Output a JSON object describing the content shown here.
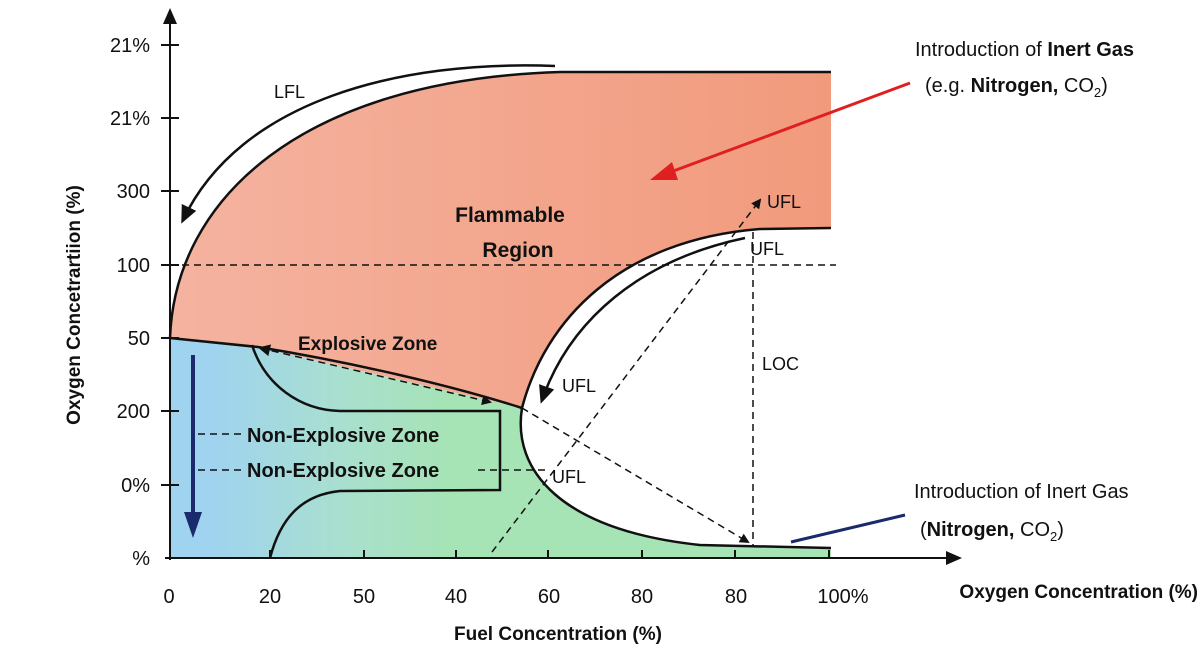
{
  "y_axis": {
    "title": "Oxygen Concetrartiion (%)",
    "ticks": [
      "21%",
      "21%",
      "300",
      "100",
      "50",
      "200",
      "0%",
      "%"
    ]
  },
  "x_axis": {
    "title": "Fuel Concentration (%)",
    "secondary_title": "Oxygen Concentration (%)",
    "ticks": [
      "0",
      "20",
      "50",
      "40",
      "60",
      "80",
      "80",
      "100%"
    ]
  },
  "labels": {
    "lfl": "LFL",
    "flammable_1": "Flammable",
    "flammable_2": "Region",
    "explosive": "Explosive Zone",
    "non_explosive_1": "Non-Explosive Zone",
    "non_explosive_2": "Non-Explosive Zone",
    "ufl_top": "UFL",
    "ufl_upper": "UFL",
    "ufl_mid": "UFL",
    "ufl_low": "UFL",
    "loc": "LOC"
  },
  "annotations": {
    "top": {
      "line1_pre": "Introduction of ",
      "line1_bold": "Inert Gas",
      "line2_pre": "(e.g. ",
      "line2_bold": "Nitrogen, ",
      "line2_co": "CO",
      "sub": "2",
      "close": ")"
    },
    "bottom": {
      "line1": "Introduction of Inert Gas",
      "line2_pre": "(",
      "line2_bold": "Nitrogen, ",
      "line2_co": "CO",
      "sub": "2",
      "close": ")"
    }
  },
  "colors": {
    "flammable": "#f3a58a",
    "non_explosive_blue": "#9fd3ef",
    "non_explosive_green": "#a6e3b5",
    "inert_arrow_red": "#e02020",
    "inert_line_navy": "#1a2a6c"
  }
}
